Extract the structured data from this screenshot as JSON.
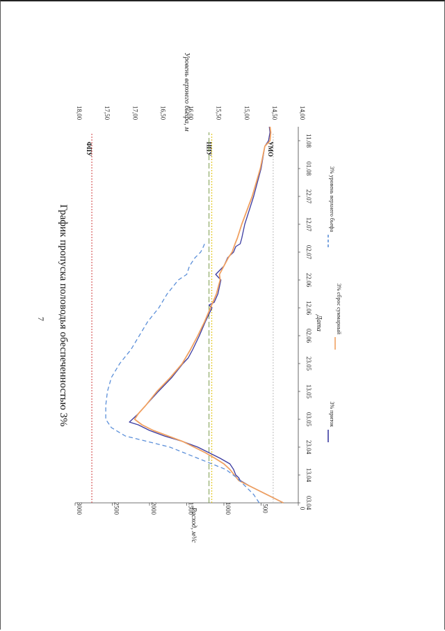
{
  "page_number": "7",
  "chart_data": {
    "type": "line",
    "title": "График пропуска половодья обеспеченностью 3%",
    "xlabel": "Дата",
    "ylabel": "Расход, м³/с",
    "ylabel_right": "Уровень верхнего бьефа, м",
    "x_start_day": 0,
    "x_range": [
      0,
      135
    ],
    "ylim": [
      0,
      3000
    ],
    "y2lim": [
      14.0,
      18.0
    ],
    "categories": [
      "03.04",
      "13.04",
      "23.04",
      "03.05",
      "13.05",
      "23.05",
      "02.06",
      "12.06",
      "22.06",
      "02.07",
      "12.07",
      "22.07",
      "01.08",
      "11.08"
    ],
    "category_days": [
      0,
      10,
      20,
      30,
      40,
      50,
      60,
      70,
      80,
      90,
      100,
      110,
      120,
      130
    ],
    "y_ticks": [
      0,
      500,
      1000,
      1500,
      2000,
      2500,
      3000
    ],
    "y2_ticks": [
      "14,00",
      "14,50",
      "15,00",
      "15,50",
      "16,00",
      "16,50",
      "17,00",
      "17,50",
      "18,00"
    ],
    "y2_tick_values": [
      14.0,
      14.5,
      15.0,
      15.5,
      16.0,
      16.5,
      17.0,
      17.5,
      18.0
    ],
    "grid": false,
    "legend_position": "bottom",
    "series": [
      {
        "name": "3% приток",
        "color": "#3a3aa0",
        "axis": "left",
        "style": "solid",
        "x": [
          0,
          2,
          4,
          6,
          8,
          9,
          10,
          12,
          14,
          16,
          18,
          20,
          22,
          24,
          26,
          28,
          29,
          30,
          32,
          35,
          40,
          45,
          50,
          52,
          55,
          60,
          65,
          70,
          71,
          72,
          75,
          80,
          82,
          85,
          88,
          90,
          92,
          93,
          95,
          100,
          110,
          120,
          128,
          130,
          133,
          135
        ],
        "values": [
          200,
          350,
          500,
          650,
          780,
          800,
          840,
          870,
          920,
          1050,
          1200,
          1350,
          1550,
          1800,
          2000,
          2150,
          2270,
          2230,
          2150,
          2050,
          1880,
          1700,
          1550,
          1480,
          1420,
          1330,
          1250,
          1160,
          1200,
          1130,
          1080,
          1040,
          1110,
          1000,
          950,
          870,
          840,
          780,
          760,
          720,
          600,
          500,
          450,
          400,
          380,
          390
        ]
      },
      {
        "name": "3% сброс суммарный",
        "color": "#f0a060",
        "axis": "left",
        "style": "solid",
        "x": [
          0,
          2,
          4,
          6,
          8,
          10,
          12,
          14,
          16,
          18,
          20,
          22,
          24,
          26,
          28,
          30,
          32,
          35,
          40,
          45,
          50,
          55,
          60,
          65,
          70,
          75,
          80,
          82,
          85,
          88,
          90,
          93,
          95,
          100,
          110,
          120,
          128,
          130,
          133,
          135
        ],
        "values": [
          200,
          350,
          500,
          650,
          800,
          860,
          920,
          1000,
          1120,
          1250,
          1400,
          1550,
          1750,
          1950,
          2100,
          2200,
          2150,
          2050,
          1900,
          1720,
          1560,
          1450,
          1350,
          1260,
          1180,
          1100,
          1050,
          1060,
          1000,
          940,
          890,
          850,
          820,
          760,
          620,
          510,
          450,
          380,
          370,
          380
        ]
      },
      {
        "name": "3% уровень верхнего бьефа",
        "color": "#5b8fd9",
        "axis": "right",
        "style": "dashed",
        "x": [
          0,
          3,
          6,
          9,
          12,
          14,
          16,
          18,
          20,
          22,
          24,
          27,
          30,
          35,
          40,
          45,
          50,
          55,
          60,
          65,
          70,
          75,
          80,
          82,
          85,
          88,
          90,
          92,
          93
        ],
        "values": [
          14.7,
          14.8,
          14.95,
          15.1,
          15.3,
          15.55,
          15.8,
          16.05,
          16.3,
          16.7,
          17.1,
          17.35,
          17.45,
          17.45,
          17.42,
          17.35,
          17.2,
          17.0,
          16.85,
          16.7,
          16.5,
          16.35,
          16.15,
          16.0,
          15.95,
          15.85,
          15.75,
          15.7,
          15.68
        ]
      }
    ],
    "reference_lines": [
      {
        "name": "ФПУ",
        "label": "ФПУ",
        "value": 17.7,
        "axis": "right",
        "color": "#d03a3a"
      },
      {
        "name": "НПУ",
        "label": "НПУ",
        "value": 15.55,
        "axis": "right",
        "color": "#e0c000"
      },
      {
        "name": "НПУ-2",
        "label": "",
        "value": 15.6,
        "axis": "right",
        "color": "#7a9a4a"
      },
      {
        "name": "УМО",
        "label": "УМО",
        "value": 14.45,
        "axis": "right",
        "color": "#bbbbbb"
      }
    ]
  }
}
